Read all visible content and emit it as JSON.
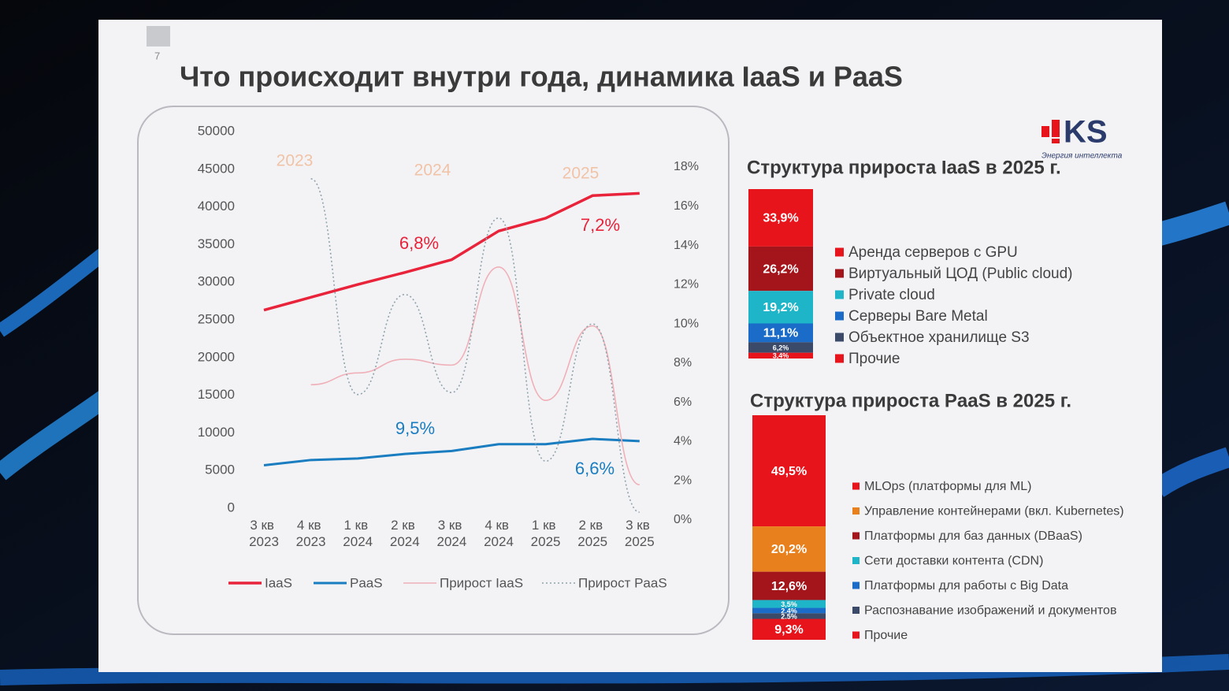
{
  "slide": {
    "number": "7",
    "title": "Что происходит внутри года, динамика IaaS и PaaS",
    "logo": {
      "name": "KS",
      "tagline": "Энергия интеллекта"
    }
  },
  "chart_data": [
    {
      "type": "line",
      "categories": [
        "3 кв 2023",
        "4 кв 2023",
        "1 кв 2024",
        "2 кв 2024",
        "3 кв 2024",
        "4 кв 2024",
        "1 кв 2025",
        "2 кв 2025",
        "3 кв 2025"
      ],
      "year_labels": [
        "2023",
        "2024",
        "2025"
      ],
      "series": [
        {
          "name": "IaaS",
          "color": "#e8233a",
          "values": [
            26300,
            28000,
            29700,
            31300,
            33000,
            36800,
            38500,
            41500,
            41800
          ]
        },
        {
          "name": "PaaS",
          "color": "#1a7dc0",
          "values": [
            5700,
            6400,
            6600,
            7200,
            7600,
            8500,
            8500,
            9200,
            8900
          ]
        },
        {
          "name": "Прирост IaaS",
          "color": "#f0b0b8",
          "axis": "y2",
          "values": [
            null,
            6.9,
            7.5,
            8.2,
            7.9,
            12.9,
            6.1,
            9.9,
            1.8
          ]
        },
        {
          "name": "Прирост PaaS",
          "color": "#8fa3ab",
          "axis": "y2",
          "values": [
            null,
            17.4,
            6.4,
            11.5,
            6.5,
            15.4,
            3.0,
            10.0,
            0.4
          ]
        }
      ],
      "annotations": [
        "6,8%",
        "7,2%",
        "9,5%",
        "6,6%"
      ],
      "ylim": [
        0,
        50000
      ],
      "yticks": [
        0,
        5000,
        10000,
        15000,
        20000,
        25000,
        30000,
        35000,
        40000,
        45000,
        50000
      ],
      "y2lim": [
        0,
        18
      ],
      "y2ticks": [
        {
          "value": 0,
          "label": "0%"
        },
        {
          "value": 2,
          "label": "2%"
        },
        {
          "value": 4,
          "label": "4%"
        },
        {
          "value": 6,
          "label": "6%"
        },
        {
          "value": 8,
          "label": "8%"
        },
        {
          "value": 10,
          "label": "10%"
        },
        {
          "value": 12,
          "label": "12%"
        },
        {
          "value": 14,
          "label": "14%"
        },
        {
          "value": 16,
          "label": "16%"
        },
        {
          "value": 18,
          "label": "18%"
        }
      ],
      "grid": false,
      "legend": "bottom"
    },
    {
      "type": "stacked_bar",
      "title": "Структура прироста IaaS в 2025 г.",
      "series": [
        {
          "name": "Аренда серверов с GPU",
          "color": "#e8141c",
          "values": [
            33.9
          ],
          "value_labels": [
            "33,9%"
          ]
        },
        {
          "name": "Виртуальный ЦОД  (Public cloud)",
          "color": "#a3141b",
          "values": [
            26.2
          ],
          "value_labels": [
            "26,2%"
          ]
        },
        {
          "name": "Private cloud",
          "color": "#1fb5c8",
          "values": [
            19.2
          ],
          "value_labels": [
            "19,2%"
          ]
        },
        {
          "name": "Серверы Bare Metal",
          "color": "#1a6cc8",
          "values": [
            11.1
          ],
          "value_labels": [
            "11,1%"
          ]
        },
        {
          "name": "Объектное хранилище S3",
          "color": "#3b4a68",
          "values": [
            6.2
          ],
          "value_labels": [
            "6,2%"
          ]
        },
        {
          "name": "Прочие",
          "color": "#e8141c",
          "values": [
            3.4
          ],
          "value_labels": [
            "3,4%"
          ]
        }
      ],
      "legend": "right"
    },
    {
      "type": "stacked_bar",
      "title": "Структура прироста PaaS в 2025 г.",
      "series": [
        {
          "name": "MLOps (платформы для ML)",
          "color": "#e8141c",
          "values": [
            49.5
          ],
          "value_labels": [
            "49,5%"
          ]
        },
        {
          "name": "Управление контейнерами (вкл. Kubernetes)",
          "color": "#e9801e",
          "values": [
            20.2
          ],
          "value_labels": [
            "20,2%"
          ]
        },
        {
          "name": "Платформы для баз данных (DBaaS)",
          "color": "#a3141b",
          "values": [
            12.6
          ],
          "value_labels": [
            "12,6%"
          ]
        },
        {
          "name": "Сети доставки контента (CDN)",
          "color": "#1fb5c8",
          "values": [
            3.5
          ],
          "value_labels": [
            "3,5%"
          ]
        },
        {
          "name": "Платформы для работы с Big Data",
          "color": "#1a6cc8",
          "values": [
            2.4
          ],
          "value_labels": [
            "2,4%"
          ]
        },
        {
          "name": "Распознавание изображений и документов",
          "color": "#3b4a68",
          "values": [
            2.5
          ],
          "value_labels": [
            "2,5%"
          ]
        },
        {
          "name": "Прочие",
          "color": "#e8141c",
          "values": [
            9.3
          ],
          "value_labels": [
            "9,3%"
          ]
        }
      ],
      "legend": "right"
    }
  ]
}
